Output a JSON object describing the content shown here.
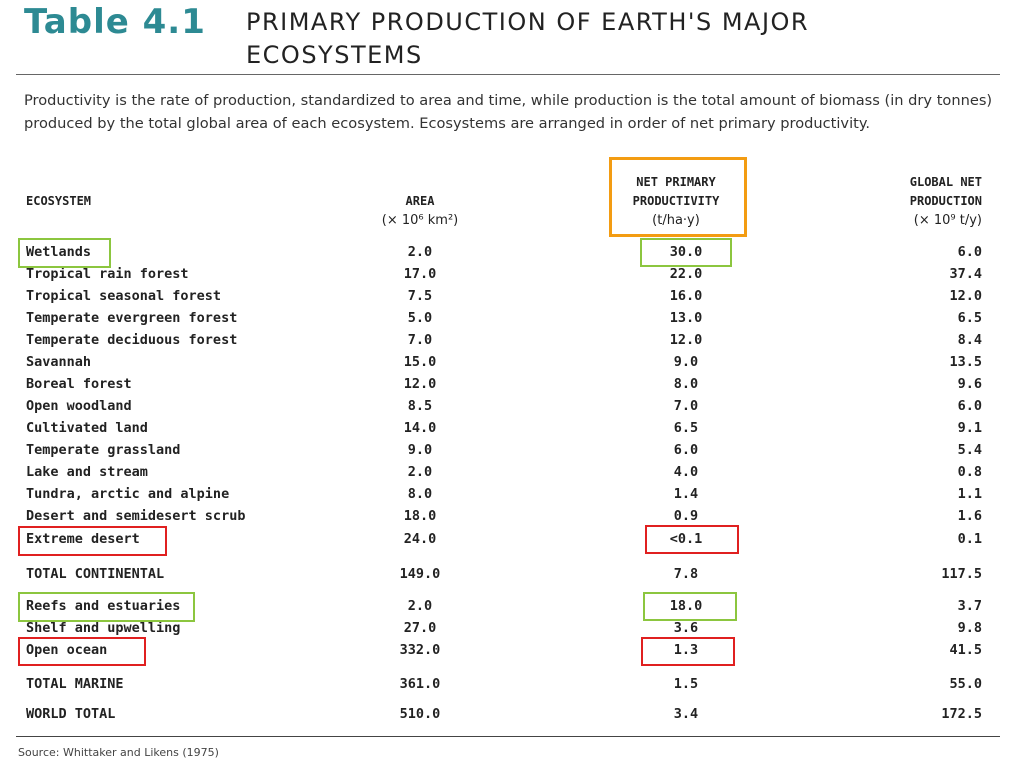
{
  "title": {
    "number": "Table 4.1",
    "line1": "PRIMARY PRODUCTION OF EARTH'S MAJOR",
    "line2": "ECOSYSTEMS"
  },
  "description": "Productivity is the rate of production, standardized to area and time, while production is the total amount of biomass (in dry tonnes) produced by the total global area of each ecosystem. Ecosystems are arranged in order of net primary productivity.",
  "columns": {
    "ecosystem": "ECOSYSTEM",
    "area": "AREA",
    "area_unit": "(× 10⁶ km²)",
    "npp_line1": "NET PRIMARY",
    "npp_line2": "PRODUCTIVITY",
    "npp_unit": "(t/ha·y)",
    "gnp_line1": "GLOBAL NET",
    "gnp_line2": "PRODUCTION",
    "gnp_unit": "(× 10⁹ t/y)"
  },
  "rows": [
    {
      "name": "Wetlands",
      "area": "2.0",
      "npp": "30.0",
      "gnp": "6.0"
    },
    {
      "name": "Tropical rain forest",
      "area": "17.0",
      "npp": "22.0",
      "gnp": "37.4"
    },
    {
      "name": "Tropical seasonal forest",
      "area": "7.5",
      "npp": "16.0",
      "gnp": "12.0"
    },
    {
      "name": "Temperate evergreen forest",
      "area": "5.0",
      "npp": "13.0",
      "gnp": "6.5"
    },
    {
      "name": "Temperate deciduous forest",
      "area": "7.0",
      "npp": "12.0",
      "gnp": "8.4"
    },
    {
      "name": "Savannah",
      "area": "15.0",
      "npp": "9.0",
      "gnp": "13.5"
    },
    {
      "name": "Boreal forest",
      "area": "12.0",
      "npp": "8.0",
      "gnp": "9.6"
    },
    {
      "name": "Open woodland",
      "area": "8.5",
      "npp": "7.0",
      "gnp": "6.0"
    },
    {
      "name": "Cultivated land",
      "area": "14.0",
      "npp": "6.5",
      "gnp": "9.1"
    },
    {
      "name": "Temperate grassland",
      "area": "9.0",
      "npp": "6.0",
      "gnp": "5.4"
    },
    {
      "name": "Lake and stream",
      "area": "2.0",
      "npp": "4.0",
      "gnp": "0.8"
    },
    {
      "name": "Tundra, arctic and alpine",
      "area": "8.0",
      "npp": "1.4",
      "gnp": "1.1"
    },
    {
      "name": "Desert and semidesert scrub",
      "area": "18.0",
      "npp": "0.9",
      "gnp": "1.6"
    },
    {
      "name": "Extreme desert",
      "area": "24.0",
      "npp": "<0.1",
      "gnp": "0.1"
    },
    {
      "name": "TOTAL CONTINENTAL",
      "area": "149.0",
      "npp": "7.8",
      "gnp": "117.5"
    },
    {
      "name": "Reefs and estuaries",
      "area": "2.0",
      "npp": "18.0",
      "gnp": "3.7"
    },
    {
      "name": "Shelf and upwelling",
      "area": "27.0",
      "npp": "3.6",
      "gnp": "9.8"
    },
    {
      "name": "Open ocean",
      "area": "332.0",
      "npp": "1.3",
      "gnp": "41.5"
    },
    {
      "name": "TOTAL MARINE",
      "area": "361.0",
      "npp": "1.5",
      "gnp": "55.0"
    },
    {
      "name": "WORLD TOTAL",
      "area": "510.0",
      "npp": "3.4",
      "gnp": "172.5"
    }
  ],
  "source": "Source: Whittaker and Likens (1975)",
  "highlight_colors": {
    "green": "#8cc63f",
    "red": "#e02020",
    "orange": "#f39c12"
  }
}
